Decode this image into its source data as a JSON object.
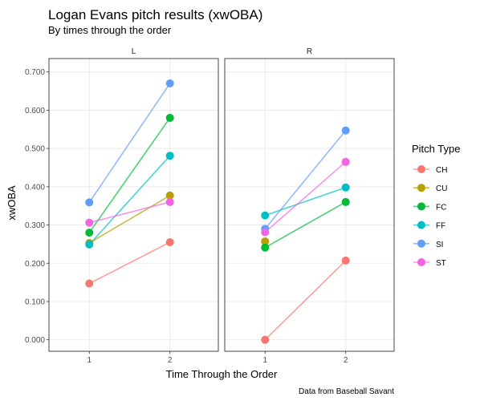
{
  "chart_data": {
    "type": "line",
    "title": "Logan Evans pitch results (xwOBA)",
    "subtitle": "By times through the order",
    "xlabel": "Time Through the Order",
    "ylabel": "xwOBA",
    "caption": "Data from Baseball Savant",
    "x_ticks": [
      "1",
      "2"
    ],
    "y_ticks": [
      "0.000",
      "0.100",
      "0.200",
      "0.300",
      "0.400",
      "0.500",
      "0.600",
      "0.700"
    ],
    "ylim": [
      -0.03,
      0.735
    ],
    "xlim": [
      0.5,
      2.6
    ],
    "grid": true,
    "legend": {
      "title": "Pitch Type",
      "position": "right",
      "entries": [
        {
          "name": "CH",
          "color": "#F8766D"
        },
        {
          "name": "CU",
          "color": "#B79F00"
        },
        {
          "name": "FC",
          "color": "#00BA38"
        },
        {
          "name": "FF",
          "color": "#00BFC4"
        },
        {
          "name": "SI",
          "color": "#619CFF"
        },
        {
          "name": "ST",
          "color": "#F564E3"
        }
      ]
    },
    "panels": [
      {
        "label": "L",
        "series": [
          {
            "name": "CH",
            "color": "#F8766D",
            "values": [
              0.147,
              0.255
            ]
          },
          {
            "name": "CU",
            "color": "#B79F00",
            "values": [
              0.253,
              0.377
            ]
          },
          {
            "name": "FC",
            "color": "#00BA38",
            "values": [
              0.28,
              0.58
            ]
          },
          {
            "name": "FF",
            "color": "#00BFC4",
            "values": [
              0.249,
              0.481
            ]
          },
          {
            "name": "SI",
            "color": "#619CFF",
            "values": [
              0.359,
              0.67
            ]
          },
          {
            "name": "ST",
            "color": "#F564E3",
            "values": [
              0.306,
              0.36
            ]
          }
        ]
      },
      {
        "label": "R",
        "series": [
          {
            "name": "CH",
            "color": "#F8766D",
            "values": [
              0.0,
              0.207
            ]
          },
          {
            "name": "CU",
            "color": "#B79F00",
            "values": [
              0.257,
              null
            ]
          },
          {
            "name": "FC",
            "color": "#00BA38",
            "values": [
              0.241,
              0.36
            ]
          },
          {
            "name": "FF",
            "color": "#00BFC4",
            "values": [
              0.325,
              0.398
            ]
          },
          {
            "name": "SI",
            "color": "#619CFF",
            "values": [
              0.29,
              0.547
            ]
          },
          {
            "name": "ST",
            "color": "#F564E3",
            "values": [
              0.281,
              0.465
            ]
          }
        ]
      }
    ]
  }
}
